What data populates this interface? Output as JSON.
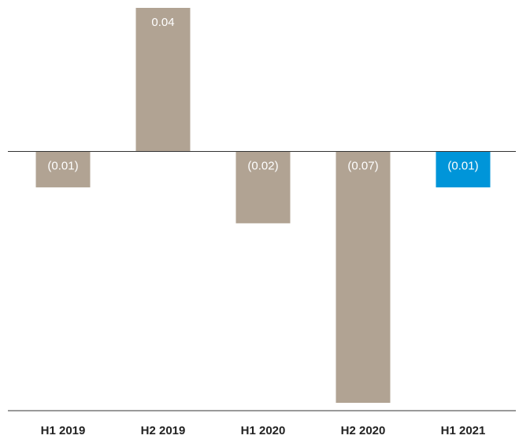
{
  "chart_data": {
    "type": "bar",
    "categories": [
      "H1 2019",
      "H2 2019",
      "H1 2020",
      "H2 2020",
      "H1 2021"
    ],
    "values": [
      -0.01,
      0.04,
      -0.02,
      -0.07,
      -0.01
    ],
    "value_labels": [
      "(0.01)",
      "0.04",
      "(0.02)",
      "(0.07)",
      "(0.01)"
    ],
    "colors": [
      "#b1a393",
      "#b1a393",
      "#b1a393",
      "#b1a393",
      "#0095d9"
    ],
    "ylim": [
      -0.07,
      0.04
    ]
  }
}
